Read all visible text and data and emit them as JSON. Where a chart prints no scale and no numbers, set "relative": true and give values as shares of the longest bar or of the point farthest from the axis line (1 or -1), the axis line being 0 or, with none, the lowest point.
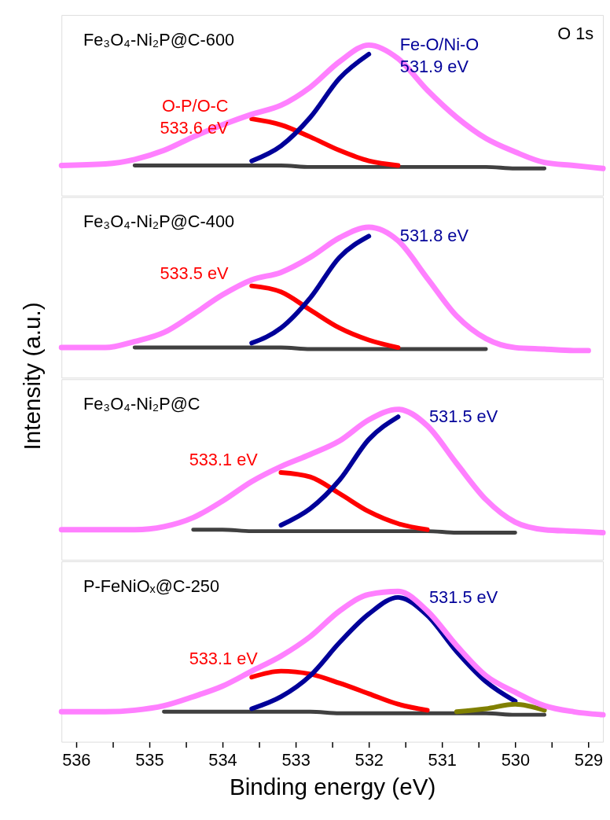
{
  "chart_data": [
    {
      "type": "line",
      "relative": true,
      "title": "Fe₃O₄-Ni₂P@C-600",
      "ylabel": "Intensity (a.u.)",
      "xlim": [
        536.2,
        528.8
      ],
      "tick_labels": false,
      "x": [
        536.2,
        535.6,
        535.2,
        534.8,
        534.4,
        534.0,
        533.6,
        533.2,
        532.8,
        532.4,
        532.0,
        531.6,
        531.2,
        530.8,
        530.4,
        530.0,
        529.6,
        529.2,
        528.8
      ],
      "series": [
        {
          "color": "#404040",
          "values": [
            null,
            null,
            0.2,
            0.2,
            0.2,
            0.2,
            0.2,
            0.2,
            0.19,
            0.19,
            0.19,
            0.19,
            0.19,
            0.19,
            0.19,
            0.18,
            0.18,
            null,
            null
          ]
        },
        {
          "color": "#ff0000",
          "values": [
            null,
            null,
            null,
            null,
            null,
            null,
            0.51,
            0.47,
            0.39,
            0.3,
            0.23,
            0.2,
            null,
            null,
            null,
            null,
            null,
            null,
            null
          ]
        },
        {
          "color": "#000099",
          "values": [
            null,
            null,
            null,
            null,
            null,
            null,
            0.23,
            0.33,
            0.52,
            0.78,
            0.94,
            null,
            null,
            null,
            null,
            null,
            null,
            null,
            null
          ]
        },
        {
          "color": "#ff80ff",
          "values": [
            0.2,
            0.21,
            0.24,
            0.3,
            0.39,
            0.47,
            0.54,
            0.6,
            0.72,
            0.89,
            1.0,
            0.91,
            0.7,
            0.52,
            0.38,
            0.29,
            0.22,
            0.2,
            0.18
          ]
        }
      ],
      "annotations": [
        {
          "text": "O-P/O-C\n533.6 eV",
          "x": 533.6,
          "y": 0.51
        },
        {
          "text": "Fe-O/Ni-O\n531.9 eV",
          "x": 532.0,
          "y": 0.94
        },
        "O 1s"
      ]
    },
    {
      "type": "line",
      "relative": true,
      "title": "Fe₃O₄-Ni₂P@C-400",
      "xlim": [
        536.2,
        528.8
      ],
      "tick_labels": false,
      "x": [
        536.2,
        535.6,
        535.2,
        534.8,
        534.4,
        534.0,
        533.6,
        533.2,
        532.8,
        532.4,
        532.0,
        531.6,
        531.2,
        530.8,
        530.4,
        530.0,
        529.6,
        529.2,
        529.0
      ],
      "series": [
        {
          "color": "#404040",
          "values": [
            null,
            null,
            0.2,
            0.2,
            0.2,
            0.2,
            0.2,
            0.2,
            0.19,
            0.19,
            0.19,
            0.19,
            0.19,
            0.19,
            0.19,
            null,
            null,
            null,
            null
          ]
        },
        {
          "color": "#ff0000",
          "values": [
            null,
            null,
            null,
            null,
            null,
            null,
            0.61,
            0.57,
            0.45,
            0.33,
            0.25,
            0.2,
            null,
            null,
            null,
            null,
            null,
            null,
            null
          ]
        },
        {
          "color": "#000099",
          "values": [
            null,
            null,
            null,
            null,
            null,
            null,
            0.23,
            0.33,
            0.53,
            0.8,
            0.94,
            null,
            null,
            null,
            null,
            null,
            null,
            null,
            null
          ]
        },
        {
          "color": "#ff80ff",
          "values": [
            0.2,
            0.2,
            0.24,
            0.3,
            0.42,
            0.55,
            0.65,
            0.7,
            0.8,
            0.93,
            1.0,
            0.91,
            0.66,
            0.41,
            0.26,
            0.2,
            0.19,
            0.18,
            0.18
          ]
        }
      ],
      "annotations": [
        {
          "text": "533.5 eV",
          "x": 533.6,
          "y": 0.61
        },
        {
          "text": "531.8 eV",
          "x": 532.0,
          "y": 0.94
        }
      ]
    },
    {
      "type": "line",
      "relative": true,
      "title": "Fe₃O₄-Ni₂P@C",
      "xlim": [
        536.2,
        528.8
      ],
      "tick_labels": false,
      "x": [
        536.2,
        535.6,
        535.2,
        534.8,
        534.4,
        534.0,
        533.6,
        533.2,
        532.8,
        532.4,
        532.0,
        531.6,
        531.2,
        530.8,
        530.4,
        530.0,
        529.6,
        529.2,
        528.8
      ],
      "series": [
        {
          "color": "#404040",
          "values": [
            null,
            null,
            null,
            null,
            0.2,
            0.2,
            0.19,
            0.19,
            0.19,
            0.19,
            0.19,
            0.19,
            0.19,
            0.18,
            0.18,
            0.18,
            null,
            null,
            null
          ]
        },
        {
          "color": "#ff0000",
          "values": [
            null,
            null,
            null,
            null,
            null,
            null,
            null,
            0.58,
            0.55,
            0.44,
            0.32,
            0.24,
            0.2,
            null,
            null,
            null,
            null,
            null,
            null
          ]
        },
        {
          "color": "#000099",
          "values": [
            null,
            null,
            null,
            null,
            null,
            null,
            null,
            0.23,
            0.34,
            0.53,
            0.8,
            0.95,
            null,
            null,
            null,
            null,
            null,
            null,
            null
          ]
        },
        {
          "color": "#ff80ff",
          "values": [
            0.2,
            0.2,
            0.2,
            0.22,
            0.28,
            0.39,
            0.52,
            0.62,
            0.7,
            0.79,
            0.93,
            1.0,
            0.89,
            0.64,
            0.4,
            0.25,
            0.2,
            0.19,
            0.18
          ]
        }
      ],
      "annotations": [
        {
          "text": "533.1 eV",
          "x": 533.2,
          "y": 0.58
        },
        {
          "text": "531.5 eV",
          "x": 531.6,
          "y": 0.95
        }
      ]
    },
    {
      "type": "line",
      "relative": true,
      "title": "P-FeNiOₓ@C-250",
      "xlabel": "Binding energy (eV)",
      "xlim": [
        536.2,
        528.8
      ],
      "xticks": [
        536,
        {
          "value": 535.5,
          "label": null
        },
        535,
        {
          "value": 534.5,
          "label": null
        },
        534,
        {
          "value": 533.5,
          "label": null
        },
        533,
        {
          "value": 532.5,
          "label": null
        },
        532,
        {
          "value": 531.5,
          "label": null
        },
        531,
        {
          "value": 530.5,
          "label": null
        },
        530,
        {
          "value": 529.5,
          "label": null
        },
        529
      ],
      "x": [
        536.2,
        535.6,
        535.2,
        534.8,
        534.4,
        534.0,
        533.6,
        533.2,
        532.8,
        532.4,
        532.0,
        531.6,
        531.2,
        530.8,
        530.4,
        530.0,
        529.6,
        529.2,
        528.8
      ],
      "series": [
        {
          "color": "#404040",
          "values": [
            null,
            null,
            null,
            0.2,
            0.2,
            0.2,
            0.2,
            0.2,
            0.2,
            0.19,
            0.19,
            0.19,
            0.19,
            0.19,
            0.19,
            0.18,
            0.18,
            null,
            null
          ]
        },
        {
          "color": "#ff0000",
          "values": [
            null,
            null,
            null,
            null,
            null,
            null,
            0.43,
            0.47,
            0.45,
            0.39,
            0.32,
            0.25,
            0.21,
            null,
            null,
            null,
            null,
            null,
            null
          ]
        },
        {
          "color": "#000099",
          "values": [
            null,
            null,
            null,
            null,
            null,
            null,
            0.22,
            0.3,
            0.44,
            0.66,
            0.85,
            0.96,
            0.84,
            0.6,
            0.4,
            0.27,
            null,
            null,
            null
          ]
        },
        {
          "color": "#808000",
          "x": [
            530.8,
            530.4,
            530.0,
            529.6
          ],
          "values": [
            0.2,
            0.22,
            0.25,
            0.21
          ]
        },
        {
          "color": "#ff80ff",
          "values": [
            0.2,
            0.2,
            0.21,
            0.24,
            0.3,
            0.37,
            0.47,
            0.57,
            0.7,
            0.87,
            0.98,
            1.0,
            0.87,
            0.64,
            0.44,
            0.33,
            0.24,
            0.2,
            0.18
          ]
        }
      ],
      "annotations": [
        {
          "text": "533.1 eV",
          "x": 533.2,
          "y": 0.47
        },
        {
          "text": "531.5 eV",
          "x": 531.6,
          "y": 0.96
        }
      ]
    }
  ]
}
